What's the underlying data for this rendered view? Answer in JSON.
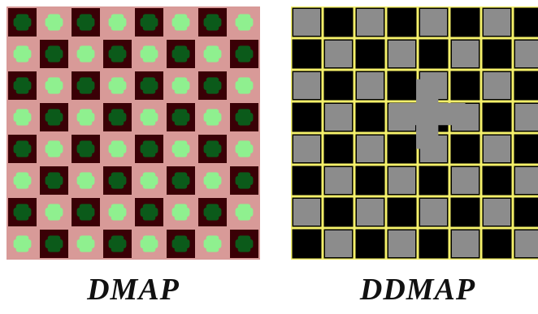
{
  "captions": {
    "left": "DMAP",
    "right": "DDMAP"
  },
  "panels": {
    "dmap": {
      "grid_size": 8,
      "colors": {
        "background": "#d89a98",
        "dark_cell": "#3a0006",
        "bright_blob": "#8ff08f",
        "dark_blob": "#0b5a1a"
      }
    },
    "ddmap": {
      "grid_size": 8,
      "colors": {
        "background": "#000000",
        "cell_gray": "#8c8c8c",
        "cell_black": "#000000",
        "grid_lines": "#f4f06a"
      }
    }
  }
}
